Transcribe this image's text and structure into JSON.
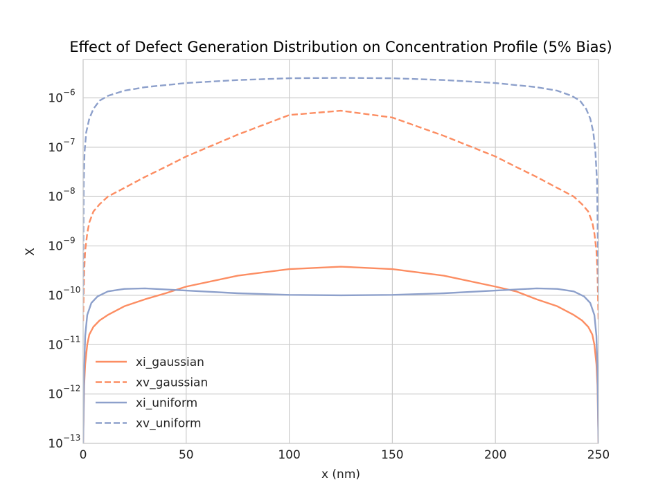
{
  "chart_data": {
    "type": "line",
    "title": "Effect of Defect Generation Distribution on Concentration Profile (5% Bias)",
    "xlabel": "x (nm)",
    "ylabel": "X",
    "xlim": [
      0,
      250
    ],
    "ylim": [
      1e-13,
      6e-06
    ],
    "yscale": "log",
    "grid": true,
    "legend_position": "lower-left",
    "x_ticks": [
      {
        "value": 0,
        "label": "0"
      },
      {
        "value": 50,
        "label": "50"
      },
      {
        "value": 100,
        "label": "100"
      },
      {
        "value": 150,
        "label": "150"
      },
      {
        "value": 200,
        "label": "200"
      },
      {
        "value": 250,
        "label": "250"
      }
    ],
    "y_ticks": [
      {
        "exp": -13,
        "base": "10",
        "sup": "−13"
      },
      {
        "exp": -12,
        "base": "10",
        "sup": "−12"
      },
      {
        "exp": -11,
        "base": "10",
        "sup": "−11"
      },
      {
        "exp": -10,
        "base": "10",
        "sup": "−10"
      },
      {
        "exp": -9,
        "base": "10",
        "sup": "−9"
      },
      {
        "exp": -8,
        "base": "10",
        "sup": "−8"
      },
      {
        "exp": -7,
        "base": "10",
        "sup": "−7"
      },
      {
        "exp": -6,
        "base": "10",
        "sup": "−6"
      }
    ],
    "series": [
      {
        "name": "xi_gaussian",
        "color": "#fc8d62",
        "dash": "solid",
        "x": [
          0,
          0.5,
          1,
          2,
          3,
          5,
          8,
          12,
          20,
          30,
          40,
          50,
          75,
          100,
          125,
          150,
          175,
          200,
          210,
          220,
          230,
          238,
          242,
          245,
          247,
          248,
          249,
          249.5,
          250
        ],
        "y": [
          1e-13,
          1.5e-12,
          4e-12,
          1e-11,
          1.6e-11,
          2.3e-11,
          3.1e-11,
          4e-11,
          6e-11,
          8.3e-11,
          1.1e-10,
          1.5e-10,
          2.5e-10,
          3.4e-10,
          3.8e-10,
          3.4e-10,
          2.5e-10,
          1.5e-10,
          1.2e-10,
          8.3e-11,
          6e-11,
          4e-11,
          3.1e-11,
          2.3e-11,
          1.6e-11,
          1e-11,
          4e-12,
          1.5e-12,
          1e-13
        ]
      },
      {
        "name": "xv_gaussian",
        "color": "#fc8d62",
        "dash": "dashed",
        "x": [
          0,
          0.5,
          1,
          2,
          3,
          5,
          8,
          12,
          20,
          30,
          40,
          50,
          75,
          100,
          125,
          150,
          175,
          200,
          210,
          220,
          230,
          238,
          242,
          245,
          247,
          248,
          249,
          249.5,
          250
        ],
        "y": [
          3e-11,
          3e-10,
          8e-10,
          1.8e-09,
          3e-09,
          5e-09,
          7e-09,
          1e-08,
          1.5e-08,
          2.5e-08,
          4e-08,
          6.5e-08,
          1.8e-07,
          4.5e-07,
          5.5e-07,
          4e-07,
          1.7e-07,
          6.5e-08,
          4e-08,
          2.5e-08,
          1.5e-08,
          1e-08,
          7e-09,
          5e-09,
          3e-09,
          1.8e-09,
          8e-10,
          3e-10,
          3e-11
        ]
      },
      {
        "name": "xi_uniform",
        "color": "#8da0cb",
        "dash": "solid",
        "x": [
          0,
          0.5,
          1,
          2,
          4,
          7,
          12,
          20,
          30,
          50,
          75,
          100,
          125,
          150,
          175,
          200,
          220,
          230,
          238,
          243,
          246,
          248,
          249,
          249.5,
          250
        ],
        "y": [
          1e-13,
          3e-12,
          1.5e-11,
          4e-11,
          7e-11,
          9.5e-11,
          1.2e-10,
          1.35e-10,
          1.38e-10,
          1.25e-10,
          1.1e-10,
          1.02e-10,
          1e-10,
          1.02e-10,
          1.1e-10,
          1.25e-10,
          1.38e-10,
          1.35e-10,
          1.2e-10,
          9.5e-11,
          7e-11,
          4e-11,
          1.5e-11,
          3e-12,
          1e-13
        ]
      },
      {
        "name": "xv_uniform",
        "color": "#8da0cb",
        "dash": "dashed",
        "x": [
          0,
          0.3,
          0.7,
          1.5,
          3,
          5,
          8,
          12,
          20,
          30,
          50,
          75,
          100,
          125,
          150,
          175,
          200,
          220,
          230,
          237,
          241,
          244,
          246,
          247.5,
          248.5,
          249.3,
          249.7,
          250
        ],
        "y": [
          1e-10,
          2e-08,
          8e-08,
          2e-07,
          3.8e-07,
          6e-07,
          8.8e-07,
          1.1e-06,
          1.4e-06,
          1.65e-06,
          2e-06,
          2.3e-06,
          2.5e-06,
          2.55e-06,
          2.5e-06,
          2.3e-06,
          2e-06,
          1.65e-06,
          1.4e-06,
          1.1e-06,
          8.8e-07,
          6e-07,
          3.8e-07,
          2e-07,
          8e-08,
          2e-08,
          1e-09,
          1e-10
        ]
      }
    ]
  }
}
